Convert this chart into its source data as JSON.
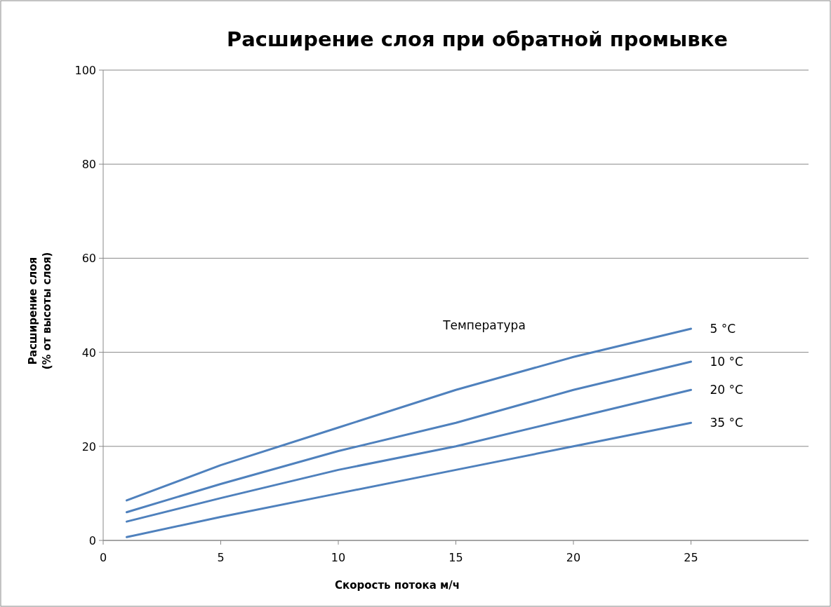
{
  "chart_data": {
    "type": "line",
    "title": "Расширение слоя при обратной промывке",
    "xlabel": "Скорость потока м/ч",
    "ylabel": "Расширение слоя\n(% от высоты слоя)",
    "annotations": [
      "Температура"
    ],
    "x": [
      1,
      5,
      10,
      15,
      20,
      25
    ],
    "series": [
      {
        "name": "5 °C",
        "color": "#4f81bd",
        "values": [
          8.5,
          16,
          24,
          32,
          39,
          45
        ]
      },
      {
        "name": "10 °C",
        "color": "#4f81bd",
        "values": [
          6,
          12,
          19,
          25,
          32,
          38
        ]
      },
      {
        "name": "20 °C",
        "color": "#4f81bd",
        "values": [
          4,
          9,
          15,
          20,
          26,
          32
        ]
      },
      {
        "name": "35 °C",
        "color": "#4f81bd",
        "values": [
          0.7,
          5,
          10,
          15,
          20,
          25
        ]
      }
    ],
    "xlim": [
      0,
      30
    ],
    "xticks": [
      0,
      5,
      10,
      15,
      20,
      25
    ],
    "ylim": [
      0,
      100
    ],
    "yticks": [
      0,
      20,
      40,
      60,
      80,
      100
    ],
    "grid": "y",
    "marker": "none",
    "line_style": "solid",
    "legend": false
  }
}
